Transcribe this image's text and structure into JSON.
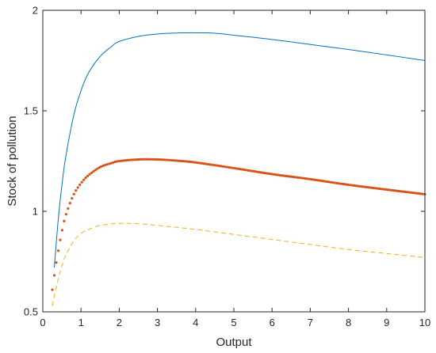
{
  "chart_data": {
    "type": "line",
    "xlabel": "Output",
    "ylabel": "Stock of pollution",
    "xlim": [
      0,
      10
    ],
    "ylim": [
      0.5,
      2
    ],
    "xticks": [
      0,
      1,
      2,
      3,
      4,
      5,
      6,
      7,
      8,
      9,
      10
    ],
    "yticks": [
      0.5,
      1,
      1.5,
      2
    ],
    "xtick_labels": [
      "0",
      "1",
      "2",
      "3",
      "4",
      "5",
      "6",
      "7",
      "8",
      "9",
      "10"
    ],
    "ytick_labels": [
      "0.5",
      "1",
      "1.5",
      "2"
    ],
    "grid": false,
    "legend": "none",
    "series": [
      {
        "style": "solid",
        "color": "#0072BD",
        "x": [
          0.3,
          0.4,
          0.5,
          0.6,
          0.8,
          1.0,
          1.2,
          1.5,
          1.8,
          2.0,
          2.5,
          3.0,
          3.5,
          4.0,
          4.5,
          5.0,
          6.0,
          7.0,
          8.0,
          9.0,
          10.0
        ],
        "y": [
          0.72,
          0.95,
          1.13,
          1.27,
          1.47,
          1.6,
          1.69,
          1.77,
          1.82,
          1.845,
          1.87,
          1.882,
          1.887,
          1.888,
          1.886,
          1.876,
          1.855,
          1.83,
          1.805,
          1.778,
          1.75
        ]
      },
      {
        "style": "dotted",
        "color": "#D95319",
        "x": [
          0.25,
          0.3,
          0.4,
          0.5,
          0.6,
          0.8,
          1.0,
          1.2,
          1.5,
          1.8,
          2.0,
          2.5,
          3.0,
          3.5,
          4.0,
          5.0,
          6.0,
          7.0,
          8.0,
          9.0,
          10.0
        ],
        "y": [
          0.61,
          0.68,
          0.8,
          0.9,
          0.98,
          1.08,
          1.14,
          1.18,
          1.22,
          1.24,
          1.25,
          1.258,
          1.258,
          1.252,
          1.243,
          1.215,
          1.185,
          1.16,
          1.132,
          1.108,
          1.085
        ]
      },
      {
        "style": "dashed",
        "color": "#EDB120",
        "x": [
          0.25,
          0.3,
          0.4,
          0.5,
          0.6,
          0.8,
          1.0,
          1.2,
          1.5,
          2.0,
          2.5,
          3.0,
          4.0,
          5.0,
          6.0,
          7.0,
          8.0,
          9.0,
          10.0
        ],
        "y": [
          0.53,
          0.58,
          0.66,
          0.73,
          0.78,
          0.85,
          0.89,
          0.91,
          0.93,
          0.94,
          0.938,
          0.93,
          0.91,
          0.885,
          0.86,
          0.835,
          0.81,
          0.79,
          0.77
        ]
      }
    ]
  }
}
